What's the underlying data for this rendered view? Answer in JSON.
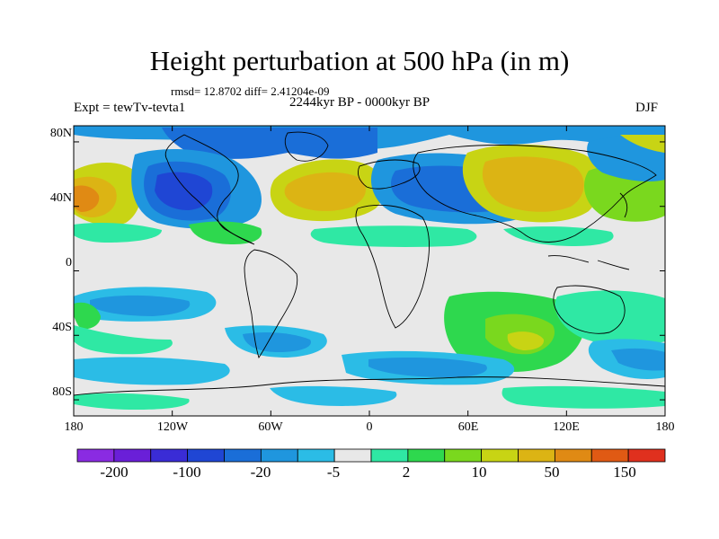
{
  "title": "Height perturbation at 500 hPa (in m)",
  "stats_text": "rmsd= 12.8702 diff= 2.41204e-09",
  "period_text": "2244kyr BP - 0000kyr BP",
  "experiment_text": "Expt = tewTv-tevta1",
  "season": "DJF",
  "map": {
    "lon_range": [
      -180,
      180
    ],
    "lat_range": [
      -90,
      90
    ],
    "lat_ticks": [
      {
        "lat": 80,
        "label": "80N"
      },
      {
        "lat": 40,
        "label": "40N"
      },
      {
        "lat": 0,
        "label": "0"
      },
      {
        "lat": -40,
        "label": "40S"
      },
      {
        "lat": -80,
        "label": "80S"
      }
    ],
    "lon_ticks": [
      {
        "lon": -180,
        "label": "180"
      },
      {
        "lon": -120,
        "label": "120W"
      },
      {
        "lon": -60,
        "label": "60W"
      },
      {
        "lon": 0,
        "label": "0"
      },
      {
        "lon": 60,
        "label": "60E"
      },
      {
        "lon": 120,
        "label": "120E"
      },
      {
        "lon": 180,
        "label": "180"
      }
    ],
    "neutral_color": "#e8e8e8"
  },
  "colorbar": {
    "colors": [
      "#8a2be2",
      "#6a1fd8",
      "#3a2cd6",
      "#1f46d4",
      "#1a6ed8",
      "#1f96de",
      "#2bbce6",
      "#e8e8e8",
      "#2fe8a4",
      "#2ed84e",
      "#7ad81e",
      "#c8d414",
      "#dcb414",
      "#e08a14",
      "#e05a14",
      "#e0301e"
    ],
    "labels": [
      "-200",
      "-100",
      "-20",
      "-5",
      "2",
      "10",
      "50",
      "150"
    ]
  }
}
